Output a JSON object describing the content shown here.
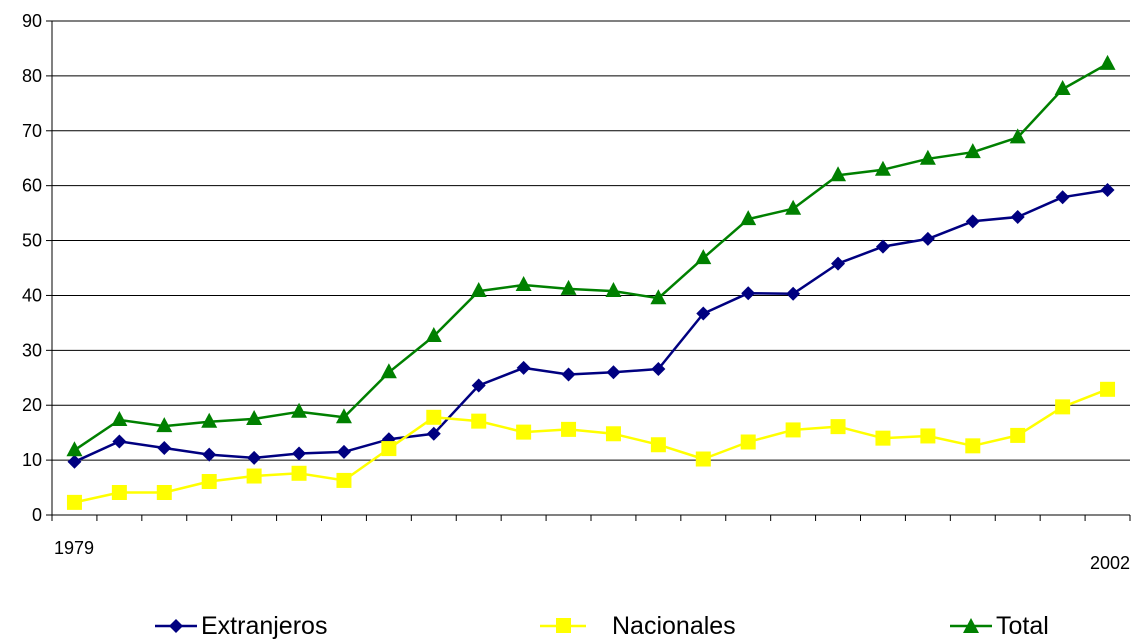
{
  "chart_data": {
    "type": "line",
    "x": [
      1979,
      1980,
      1981,
      1982,
      1983,
      1984,
      1985,
      1986,
      1987,
      1988,
      1989,
      1990,
      1991,
      1992,
      1993,
      1994,
      1995,
      1996,
      1997,
      1998,
      1999,
      2000,
      2001,
      2002
    ],
    "x_tick_labels": {
      "first": "1979",
      "last": "2002"
    },
    "ylim": [
      0,
      90
    ],
    "yticks": [
      0,
      10,
      20,
      30,
      40,
      50,
      60,
      70,
      80,
      90
    ],
    "grid": true,
    "legend_position": "bottom",
    "series": [
      {
        "name": "Extranjeros",
        "color": "#000080",
        "marker": "diamond",
        "values": [
          9.7,
          13.4,
          12.2,
          11.0,
          10.4,
          11.2,
          11.5,
          13.8,
          14.8,
          23.6,
          26.8,
          25.6,
          26.0,
          26.6,
          36.7,
          40.4,
          40.3,
          45.8,
          48.9,
          50.3,
          53.5,
          54.3,
          57.9,
          59.2
        ]
      },
      {
        "name": "Nacionales",
        "color": "#FFFF00",
        "marker": "square",
        "values": [
          2.3,
          4.1,
          4.1,
          6.1,
          7.1,
          7.6,
          6.3,
          12.1,
          17.8,
          17.1,
          15.1,
          15.6,
          14.8,
          12.8,
          10.2,
          13.3,
          15.5,
          16.1,
          14.0,
          14.4,
          12.6,
          14.5,
          19.7,
          22.9
        ]
      },
      {
        "name": "Total",
        "color": "#008000",
        "marker": "triangle",
        "values": [
          11.8,
          17.3,
          16.2,
          17.0,
          17.5,
          18.8,
          17.8,
          26.0,
          32.6,
          40.8,
          41.9,
          41.2,
          40.8,
          39.5,
          46.8,
          53.9,
          55.8,
          61.9,
          62.9,
          64.9,
          66.1,
          68.8,
          77.6,
          82.2
        ]
      }
    ]
  }
}
